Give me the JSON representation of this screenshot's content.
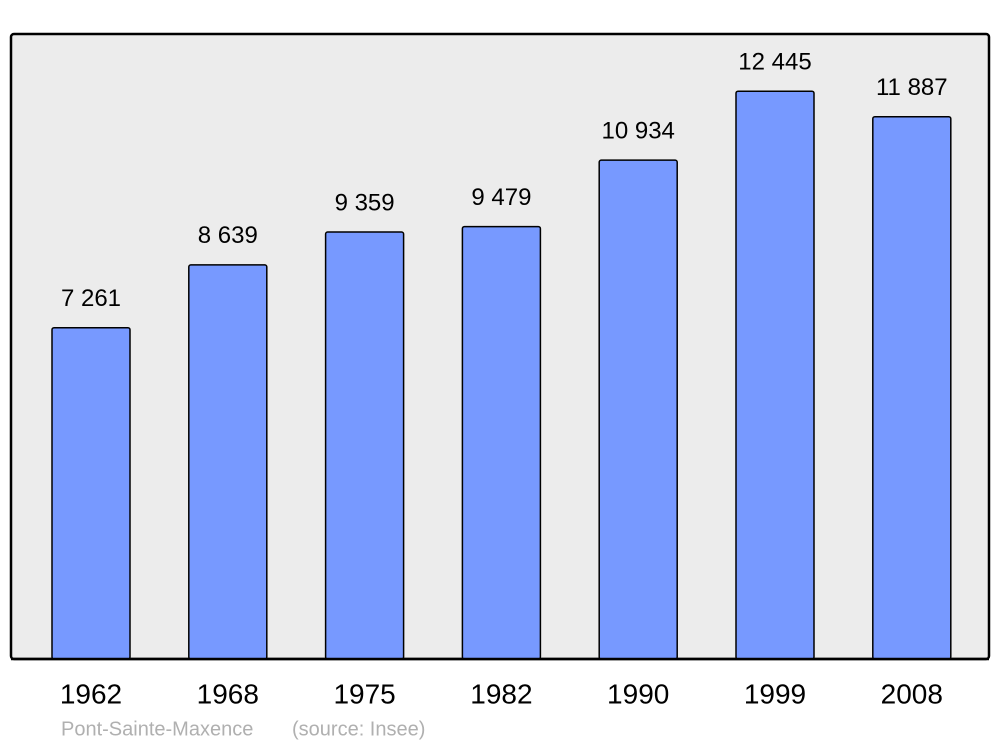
{
  "chart_data": {
    "type": "bar",
    "categories": [
      "1962",
      "1968",
      "1975",
      "1982",
      "1990",
      "1999",
      "2008"
    ],
    "values": [
      7261,
      8639,
      9359,
      9479,
      10934,
      12445,
      11887
    ],
    "value_labels": [
      "7 261",
      "8 639",
      "9 359",
      "9 479",
      "10 934",
      "12 445",
      "11 887"
    ],
    "color": "#7799ff",
    "ylim": [
      0,
      13700
    ],
    "footer": {
      "place": "Pont-Sainte-Maxence",
      "source": "(source: Insee)"
    }
  }
}
